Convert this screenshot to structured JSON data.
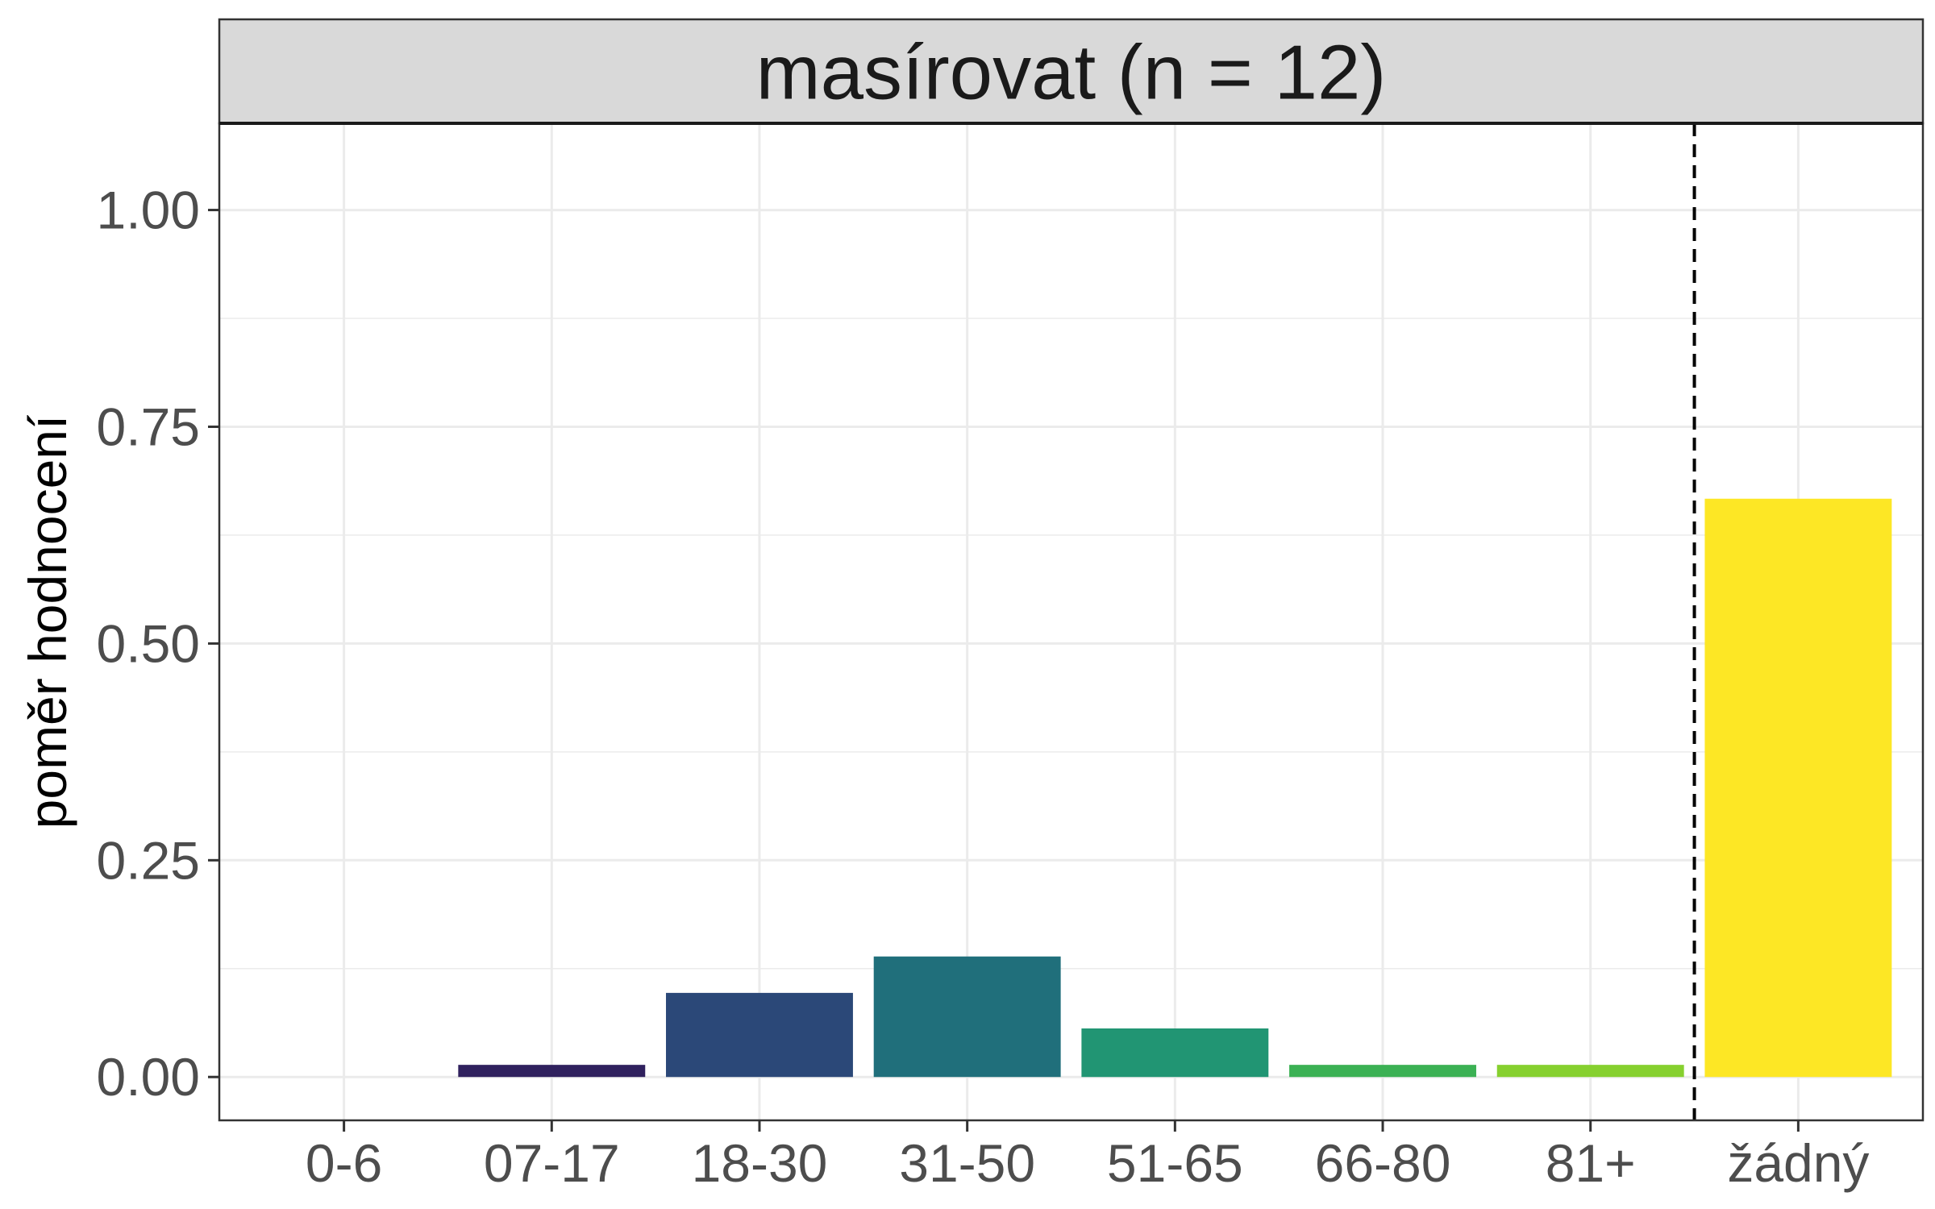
{
  "chart_data": {
    "type": "bar",
    "title": "masírovat (n = 12)",
    "xlabel": "",
    "ylabel": "poměr hodnocení",
    "categories": [
      "0-6",
      "07-17",
      "18-30",
      "31-50",
      "51-65",
      "66-80",
      "81+",
      "žádný"
    ],
    "values": [
      0.0,
      0.014,
      0.097,
      0.139,
      0.056,
      0.014,
      0.014,
      0.667
    ],
    "colors": [
      "#440154",
      "#30215e",
      "#2b4878",
      "#206f7b",
      "#219573",
      "#3bb154",
      "#86d02f",
      "#fde725"
    ],
    "ylim": [
      -0.05,
      1.1
    ],
    "yticks": [
      0.0,
      0.25,
      0.5,
      0.75,
      1.0
    ],
    "ytick_labels": [
      "0.00",
      "0.25",
      "0.50",
      "0.75",
      "1.00"
    ],
    "reference_line": {
      "between": [
        "81+",
        "žádný"
      ],
      "style": "dashed"
    },
    "grid": true,
    "legend": "none"
  }
}
